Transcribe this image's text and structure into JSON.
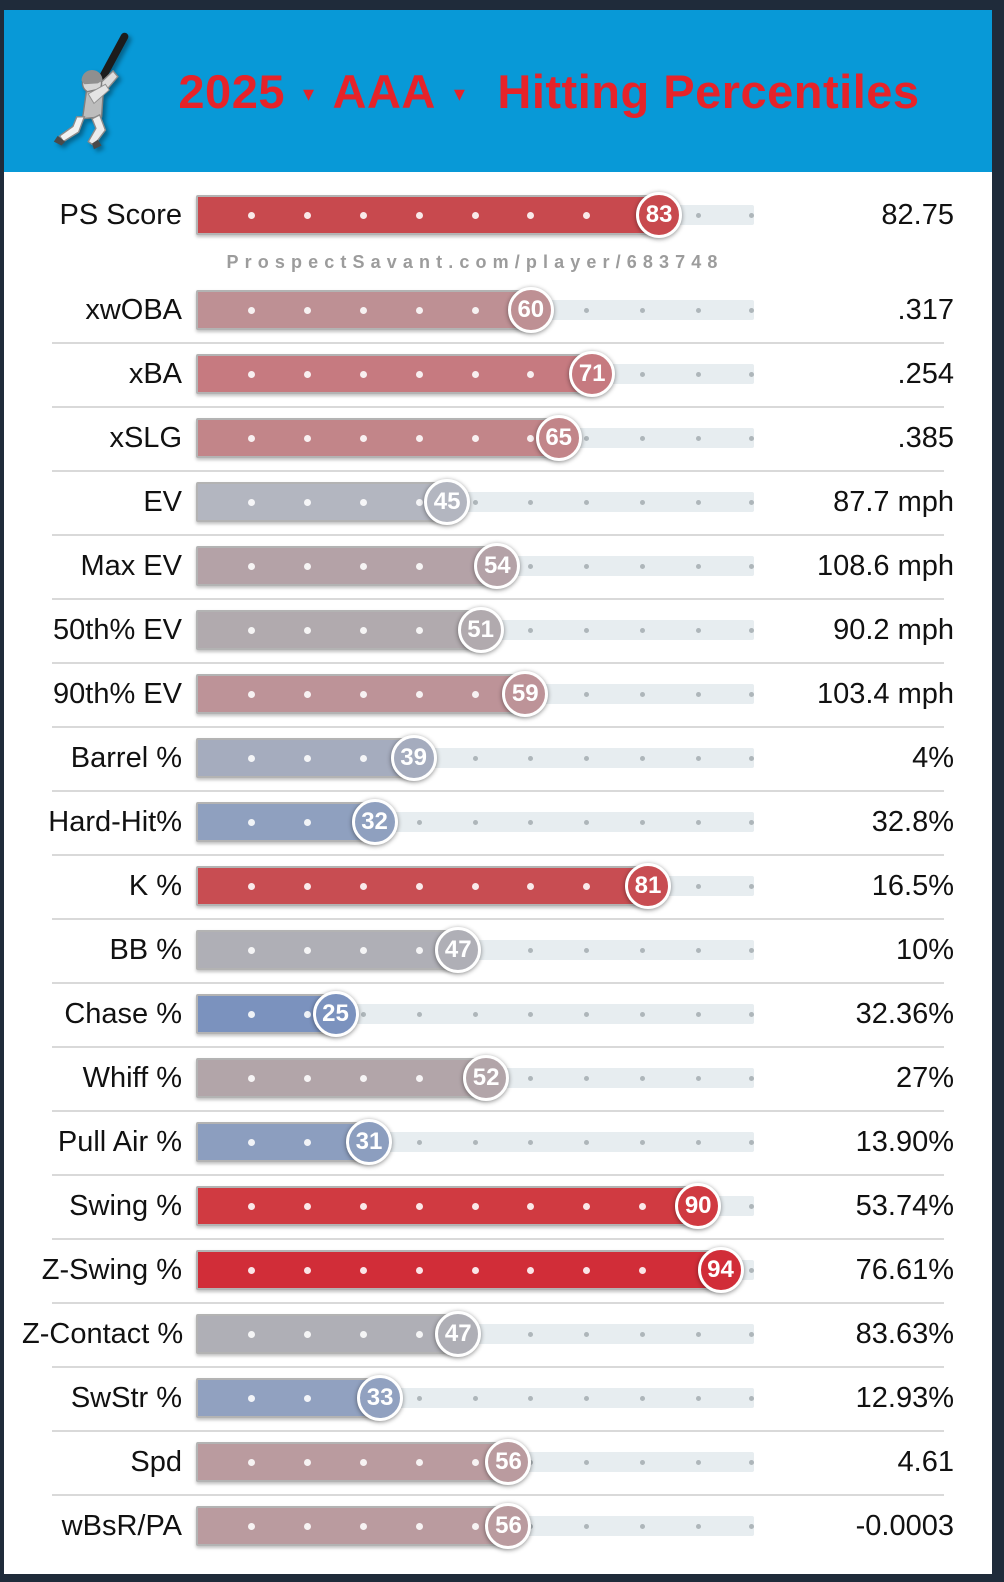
{
  "header": {
    "year": "2025",
    "level": "AAA",
    "title": "Hitting Percentiles",
    "caret": "▾",
    "background_color": "#0899D7",
    "title_color": "#E62329",
    "batter_icon": "baseball-batter-icon"
  },
  "watermark": "ProspectSavant.com/player/683748",
  "colors": {
    "track": "#E7EDF0",
    "track_dot": "#AEB6BA",
    "divider": "#D9D9D9",
    "frame": "#1F2B3A"
  },
  "chart_data": {
    "type": "bar",
    "title": "2025 AAA Hitting Percentiles",
    "orientation": "horizontal",
    "xlim": [
      0,
      100
    ],
    "grid": "dotted ticks every 10 percentile",
    "categories": [
      "PS Score",
      "xwOBA",
      "xBA",
      "xSLG",
      "EV",
      "Max EV",
      "50th% EV",
      "90th% EV",
      "Barrel %",
      "Hard-Hit%",
      "K %",
      "BB %",
      "Chase %",
      "Whiff %",
      "Pull Air %",
      "Swing %",
      "Z-Swing %",
      "Z-Contact %",
      "SwStr %",
      "Spd",
      "wBsR/PA"
    ],
    "series": [
      {
        "name": "percentile",
        "values": [
          83,
          60,
          71,
          65,
          45,
          54,
          51,
          59,
          39,
          32,
          81,
          47,
          25,
          52,
          31,
          90,
          94,
          47,
          33,
          56,
          56
        ]
      },
      {
        "name": "stat_value",
        "values": [
          "82.75",
          ".317",
          ".254",
          ".385",
          "87.7 mph",
          "108.6 mph",
          "90.2 mph",
          "103.4 mph",
          "4%",
          "32.8%",
          "16.5%",
          "10%",
          "32.36%",
          "27%",
          "13.90%",
          "53.74%",
          "76.61%",
          "83.63%",
          "12.93%",
          "4.61",
          "-0.0003"
        ]
      }
    ]
  },
  "rows": [
    {
      "label": "PS Score",
      "percentile": 83,
      "value": "82.75",
      "color": "#C8494E"
    },
    {
      "label": "xwOBA",
      "percentile": 60,
      "value": ".317",
      "color": "#BE9094"
    },
    {
      "label": "xBA",
      "percentile": 71,
      "value": ".254",
      "color": "#C67A80"
    },
    {
      "label": "xSLG",
      "percentile": 65,
      "value": ".385",
      "color": "#C28589"
    },
    {
      "label": "EV",
      "percentile": 45,
      "value": "87.7 mph",
      "color": "#B3B6C0"
    },
    {
      "label": "Max EV",
      "percentile": 54,
      "value": "108.6 mph",
      "color": "#B4A2A7"
    },
    {
      "label": "50th% EV",
      "percentile": 51,
      "value": "90.2 mph",
      "color": "#B1AAAE"
    },
    {
      "label": "90th% EV",
      "percentile": 59,
      "value": "103.4 mph",
      "color": "#BD9398"
    },
    {
      "label": "Barrel %",
      "percentile": 39,
      "value": "4%",
      "color": "#A5ACBE"
    },
    {
      "label": "Hard-Hit%",
      "percentile": 32,
      "value": "32.8%",
      "color": "#8FA0BF"
    },
    {
      "label": "K %",
      "percentile": 81,
      "value": "16.5%",
      "color": "#C84D52"
    },
    {
      "label": "BB %",
      "percentile": 47,
      "value": "10%",
      "color": "#AFAFB6"
    },
    {
      "label": "Chase %",
      "percentile": 25,
      "value": "32.36%",
      "color": "#7B92BE"
    },
    {
      "label": "Whiff %",
      "percentile": 52,
      "value": "27%",
      "color": "#B2A5A9"
    },
    {
      "label": "Pull Air %",
      "percentile": 31,
      "value": "13.90%",
      "color": "#8C9EBF"
    },
    {
      "label": "Swing %",
      "percentile": 90,
      "value": "53.74%",
      "color": "#D03A41"
    },
    {
      "label": "Z-Swing %",
      "percentile": 94,
      "value": "76.61%",
      "color": "#D12D38"
    },
    {
      "label": "Z-Contact %",
      "percentile": 47,
      "value": "83.63%",
      "color": "#AFAFB6"
    },
    {
      "label": "SwStr %",
      "percentile": 33,
      "value": "12.93%",
      "color": "#91A1C0"
    },
    {
      "label": "Spd",
      "percentile": 56,
      "value": "4.61",
      "color": "#BA9B9F"
    },
    {
      "label": "wBsR/PA",
      "percentile": 56,
      "value": "-0.0003",
      "color": "#BA9B9F"
    }
  ]
}
